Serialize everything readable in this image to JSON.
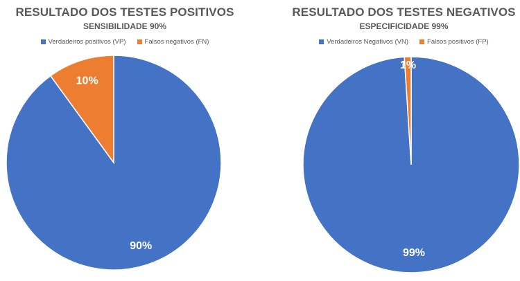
{
  "chart_data": [
    {
      "type": "pie",
      "title": "RESULTADO DOS TESTES POSITIVOS",
      "subtitle": "SENSIBILIDADE 90%",
      "legend_position": "top",
      "slices": [
        {
          "name": "Verdadeiros positivos (VP)",
          "value": 90,
          "label": "90%",
          "color": "#4472C4"
        },
        {
          "name": "Falsos negativos (FN)",
          "value": 10,
          "label": "10%",
          "color": "#ED7D31"
        }
      ]
    },
    {
      "type": "pie",
      "title": "RESULTADO DOS TESTES NEGATIVOS",
      "subtitle": "ESPECIFICIDADE 99%",
      "legend_position": "top",
      "slices": [
        {
          "name": "Verdadeiros Negativos (VN)",
          "value": 99,
          "label": "99%",
          "color": "#4472C4"
        },
        {
          "name": "Falsos positivos (FP)",
          "value": 1,
          "label": "1%",
          "color": "#ED7D31"
        }
      ]
    }
  ]
}
